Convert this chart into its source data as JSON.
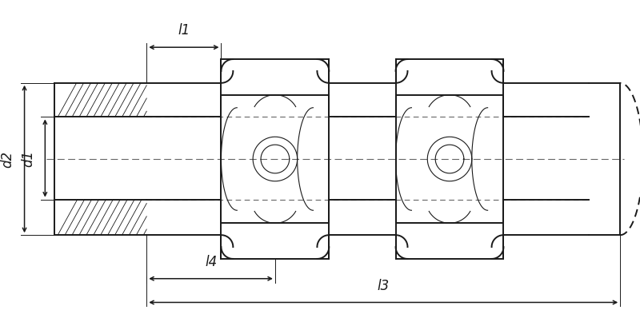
{
  "bg_color": "#ffffff",
  "line_color": "#1a1a1a",
  "dash_color": "#666666",
  "fontsize_dim": 12,
  "lw_main": 1.4,
  "lw_thin": 0.8,
  "lw_hatch": 0.6,
  "dim_l1_label": "l1",
  "dim_l3_label": "l3",
  "dim_l4_label": "l4",
  "dim_d1_label": "d1",
  "dim_d2_label": "d2"
}
